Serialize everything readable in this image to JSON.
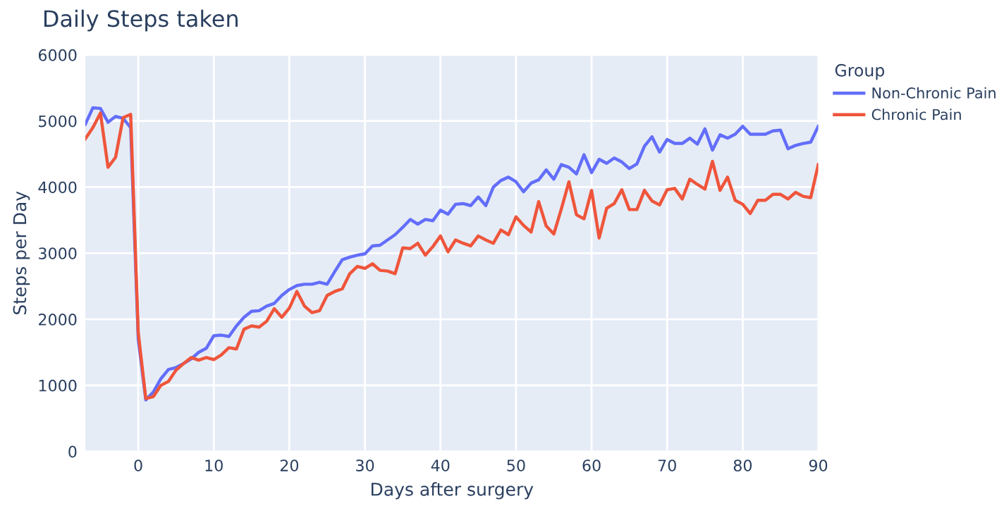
{
  "chart_data": {
    "type": "line",
    "title": "Daily Steps taken",
    "xlabel": "Days after surgery",
    "ylabel": "Steps per Day",
    "legend_title": "Group",
    "x": [
      -7,
      -6,
      -5,
      -4,
      -3,
      -2,
      -1,
      0,
      1,
      2,
      3,
      4,
      5,
      6,
      7,
      8,
      9,
      10,
      11,
      12,
      13,
      14,
      15,
      16,
      17,
      18,
      19,
      20,
      21,
      22,
      23,
      24,
      25,
      26,
      27,
      28,
      29,
      30,
      31,
      32,
      33,
      34,
      35,
      36,
      37,
      38,
      39,
      40,
      41,
      42,
      43,
      44,
      45,
      46,
      47,
      48,
      49,
      50,
      51,
      52,
      53,
      54,
      55,
      56,
      57,
      58,
      59,
      60,
      61,
      62,
      63,
      64,
      65,
      66,
      67,
      68,
      69,
      70,
      71,
      72,
      73,
      74,
      75,
      76,
      77,
      78,
      79,
      80,
      81,
      82,
      83,
      84,
      85,
      86,
      87,
      88,
      89,
      90
    ],
    "series": [
      {
        "name": "Non-Chronic Pain",
        "color": "#636efa",
        "values": [
          4950,
          5200,
          5190,
          4980,
          5070,
          5040,
          4900,
          1700,
          780,
          900,
          1100,
          1240,
          1270,
          1330,
          1400,
          1500,
          1560,
          1750,
          1760,
          1740,
          1900,
          2030,
          2120,
          2130,
          2200,
          2240,
          2360,
          2450,
          2510,
          2530,
          2530,
          2560,
          2530,
          2720,
          2900,
          2940,
          2970,
          2990,
          3110,
          3120,
          3200,
          3280,
          3390,
          3510,
          3440,
          3510,
          3490,
          3650,
          3590,
          3740,
          3750,
          3720,
          3850,
          3720,
          4000,
          4100,
          4150,
          4080,
          3930,
          4060,
          4110,
          4260,
          4120,
          4340,
          4300,
          4200,
          4490,
          4220,
          4420,
          4360,
          4440,
          4380,
          4280,
          4350,
          4620,
          4760,
          4530,
          4720,
          4660,
          4660,
          4740,
          4650,
          4880,
          4560,
          4790,
          4740,
          4800,
          4920,
          4800,
          4800,
          4800,
          4850,
          4860,
          4580,
          4630,
          4660,
          4680,
          4920
        ]
      },
      {
        "name": "Chronic Pain",
        "color": "#ef553b",
        "values": [
          4730,
          4900,
          5120,
          4300,
          4450,
          5050,
          5100,
          1800,
          800,
          830,
          1000,
          1060,
          1230,
          1330,
          1420,
          1380,
          1420,
          1390,
          1460,
          1570,
          1550,
          1850,
          1900,
          1880,
          1970,
          2160,
          2030,
          2170,
          2420,
          2200,
          2100,
          2130,
          2360,
          2420,
          2460,
          2690,
          2800,
          2770,
          2840,
          2740,
          2730,
          2690,
          3080,
          3070,
          3150,
          2970,
          3100,
          3260,
          3020,
          3200,
          3150,
          3110,
          3260,
          3200,
          3150,
          3350,
          3280,
          3550,
          3420,
          3320,
          3780,
          3410,
          3290,
          3670,
          4080,
          3580,
          3520,
          3950,
          3230,
          3680,
          3750,
          3960,
          3660,
          3660,
          3950,
          3790,
          3730,
          3960,
          3980,
          3820,
          4120,
          4040,
          3970,
          4390,
          3950,
          4150,
          3800,
          3740,
          3600,
          3800,
          3800,
          3890,
          3890,
          3820,
          3920,
          3860,
          3840,
          4340
        ]
      }
    ],
    "xlim": [
      -7,
      90
    ],
    "xticks": [
      0,
      10,
      20,
      30,
      40,
      50,
      60,
      70,
      80,
      90
    ],
    "ylim": [
      0,
      6000
    ],
    "yticks": [
      0,
      1000,
      2000,
      3000,
      4000,
      5000,
      6000
    ],
    "grid": true,
    "legend": "top right"
  }
}
